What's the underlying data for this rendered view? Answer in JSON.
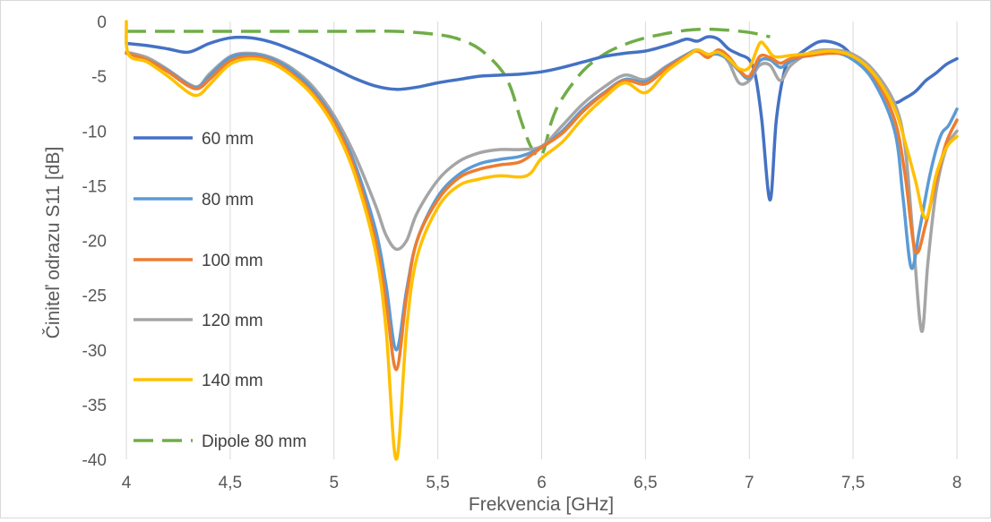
{
  "chart_data": {
    "type": "line",
    "title": "",
    "xlabel": "Frekvencia [GHz]",
    "ylabel": "Činiteľ odrazu S11 [dB]",
    "xlim": [
      4,
      8
    ],
    "ylim": [
      -40,
      0
    ],
    "x_ticks": [
      "4",
      "4,5",
      "5",
      "5,5",
      "6",
      "6,5",
      "7",
      "7,5",
      "8"
    ],
    "y_ticks": [
      "0",
      "-5",
      "-10",
      "-15",
      "-20",
      "-25",
      "-30",
      "-35",
      "-40"
    ],
    "x_tick_values": [
      4,
      4.5,
      5,
      5.5,
      6,
      6.5,
      7,
      7.5,
      8
    ],
    "y_tick_values": [
      0,
      -5,
      -10,
      -15,
      -20,
      -25,
      -30,
      -35,
      -40
    ],
    "grid": "vertical",
    "legend_position": "left",
    "series": [
      {
        "name": "60 mm",
        "color": "#4472c4",
        "dash": false,
        "points": [
          [
            4,
            -2.0
          ],
          [
            4.1,
            -2.2
          ],
          [
            4.2,
            -2.5
          ],
          [
            4.3,
            -2.8
          ],
          [
            4.4,
            -2.0
          ],
          [
            4.5,
            -1.5
          ],
          [
            4.6,
            -1.5
          ],
          [
            4.7,
            -1.9
          ],
          [
            4.8,
            -2.6
          ],
          [
            4.9,
            -3.4
          ],
          [
            5.0,
            -4.3
          ],
          [
            5.1,
            -5.2
          ],
          [
            5.2,
            -5.9
          ],
          [
            5.3,
            -6.2
          ],
          [
            5.4,
            -6.0
          ],
          [
            5.5,
            -5.6
          ],
          [
            5.6,
            -5.3
          ],
          [
            5.7,
            -5.0
          ],
          [
            5.8,
            -4.9
          ],
          [
            5.9,
            -4.8
          ],
          [
            6.0,
            -4.6
          ],
          [
            6.1,
            -4.2
          ],
          [
            6.2,
            -3.7
          ],
          [
            6.3,
            -3.2
          ],
          [
            6.4,
            -2.9
          ],
          [
            6.5,
            -2.7
          ],
          [
            6.6,
            -2.2
          ],
          [
            6.65,
            -1.9
          ],
          [
            6.7,
            -1.6
          ],
          [
            6.75,
            -1.8
          ],
          [
            6.8,
            -1.4
          ],
          [
            6.85,
            -1.6
          ],
          [
            6.9,
            -2.5
          ],
          [
            6.95,
            -3.0
          ],
          [
            7.0,
            -3.5
          ],
          [
            7.03,
            -5.0
          ],
          [
            7.06,
            -9.0
          ],
          [
            7.1,
            -16.3
          ],
          [
            7.13,
            -9.0
          ],
          [
            7.17,
            -4.5
          ],
          [
            7.2,
            -3.6
          ],
          [
            7.3,
            -2.2
          ],
          [
            7.35,
            -1.8
          ],
          [
            7.4,
            -1.9
          ],
          [
            7.45,
            -2.3
          ],
          [
            7.5,
            -3.2
          ],
          [
            7.55,
            -4.2
          ],
          [
            7.6,
            -5.2
          ],
          [
            7.65,
            -6.5
          ],
          [
            7.7,
            -7.4
          ],
          [
            7.75,
            -7.0
          ],
          [
            7.8,
            -6.4
          ],
          [
            7.85,
            -5.4
          ],
          [
            7.9,
            -4.7
          ],
          [
            7.95,
            -3.9
          ],
          [
            8.0,
            -3.4
          ]
        ]
      },
      {
        "name": "80 mm",
        "color": "#5b9bd5",
        "dash": false,
        "points": [
          [
            4,
            -2.9
          ],
          [
            4.1,
            -3.5
          ],
          [
            4.2,
            -4.5
          ],
          [
            4.3,
            -5.8
          ],
          [
            4.35,
            -6.0
          ],
          [
            4.4,
            -5.0
          ],
          [
            4.5,
            -3.3
          ],
          [
            4.6,
            -3.0
          ],
          [
            4.7,
            -3.4
          ],
          [
            4.8,
            -4.5
          ],
          [
            4.9,
            -6.3
          ],
          [
            5.0,
            -9.0
          ],
          [
            5.1,
            -13.0
          ],
          [
            5.2,
            -19.0
          ],
          [
            5.25,
            -24.0
          ],
          [
            5.3,
            -30.0
          ],
          [
            5.35,
            -24.5
          ],
          [
            5.4,
            -20.0
          ],
          [
            5.5,
            -16.0
          ],
          [
            5.6,
            -14.0
          ],
          [
            5.7,
            -13.0
          ],
          [
            5.8,
            -12.6
          ],
          [
            5.9,
            -12.3
          ],
          [
            6.0,
            -11.5
          ],
          [
            6.1,
            -10.0
          ],
          [
            6.2,
            -8.0
          ],
          [
            6.3,
            -6.5
          ],
          [
            6.4,
            -5.3
          ],
          [
            6.5,
            -5.5
          ],
          [
            6.6,
            -4.2
          ],
          [
            6.7,
            -3.0
          ],
          [
            6.75,
            -2.6
          ],
          [
            6.8,
            -3.0
          ],
          [
            6.85,
            -3.0
          ],
          [
            6.9,
            -3.5
          ],
          [
            6.95,
            -4.5
          ],
          [
            7.0,
            -5.2
          ],
          [
            7.05,
            -3.6
          ],
          [
            7.1,
            -3.5
          ],
          [
            7.15,
            -4.2
          ],
          [
            7.2,
            -3.6
          ],
          [
            7.3,
            -3.0
          ],
          [
            7.4,
            -2.8
          ],
          [
            7.5,
            -3.5
          ],
          [
            7.6,
            -5.5
          ],
          [
            7.7,
            -10.0
          ],
          [
            7.74,
            -16.0
          ],
          [
            7.78,
            -22.5
          ],
          [
            7.82,
            -19.0
          ],
          [
            7.87,
            -14.0
          ],
          [
            7.92,
            -10.5
          ],
          [
            7.96,
            -9.5
          ],
          [
            8.0,
            -8.0
          ]
        ]
      },
      {
        "name": "100 mm",
        "color": "#ed7d31",
        "dash": false,
        "points": [
          [
            4,
            -2.9
          ],
          [
            4.1,
            -3.5
          ],
          [
            4.2,
            -4.6
          ],
          [
            4.3,
            -5.9
          ],
          [
            4.35,
            -6.1
          ],
          [
            4.4,
            -5.3
          ],
          [
            4.5,
            -3.6
          ],
          [
            4.6,
            -3.2
          ],
          [
            4.7,
            -3.6
          ],
          [
            4.8,
            -4.8
          ],
          [
            4.9,
            -6.6
          ],
          [
            5.0,
            -9.2
          ],
          [
            5.1,
            -13.5
          ],
          [
            5.2,
            -20.0
          ],
          [
            5.25,
            -25.5
          ],
          [
            5.3,
            -31.8
          ],
          [
            5.35,
            -25.0
          ],
          [
            5.4,
            -20.0
          ],
          [
            5.5,
            -16.3
          ],
          [
            5.6,
            -14.3
          ],
          [
            5.7,
            -13.5
          ],
          [
            5.8,
            -13.1
          ],
          [
            5.9,
            -12.8
          ],
          [
            6.0,
            -11.5
          ],
          [
            6.1,
            -10.2
          ],
          [
            6.2,
            -8.2
          ],
          [
            6.3,
            -6.6
          ],
          [
            6.4,
            -5.4
          ],
          [
            6.5,
            -5.7
          ],
          [
            6.6,
            -4.3
          ],
          [
            6.7,
            -3.1
          ],
          [
            6.75,
            -2.7
          ],
          [
            6.8,
            -3.3
          ],
          [
            6.85,
            -2.6
          ],
          [
            6.9,
            -3.2
          ],
          [
            6.95,
            -4.4
          ],
          [
            7.0,
            -5.0
          ],
          [
            7.05,
            -3.2
          ],
          [
            7.1,
            -3.3
          ],
          [
            7.15,
            -3.8
          ],
          [
            7.2,
            -3.4
          ],
          [
            7.3,
            -3.1
          ],
          [
            7.4,
            -2.9
          ],
          [
            7.5,
            -3.2
          ],
          [
            7.6,
            -5.0
          ],
          [
            7.7,
            -9.0
          ],
          [
            7.75,
            -14.0
          ],
          [
            7.8,
            -21.0
          ],
          [
            7.85,
            -18.5
          ],
          [
            7.9,
            -14.5
          ],
          [
            7.95,
            -11.0
          ],
          [
            8.0,
            -9.0
          ]
        ]
      },
      {
        "name": "120 mm",
        "color": "#a5a5a5",
        "dash": false,
        "points": [
          [
            4,
            -2.8
          ],
          [
            4.1,
            -3.3
          ],
          [
            4.2,
            -4.4
          ],
          [
            4.3,
            -5.7
          ],
          [
            4.35,
            -5.9
          ],
          [
            4.4,
            -4.8
          ],
          [
            4.5,
            -3.2
          ],
          [
            4.6,
            -2.9
          ],
          [
            4.7,
            -3.3
          ],
          [
            4.8,
            -4.3
          ],
          [
            4.9,
            -6.0
          ],
          [
            5.0,
            -8.6
          ],
          [
            5.1,
            -12.2
          ],
          [
            5.2,
            -16.8
          ],
          [
            5.25,
            -19.5
          ],
          [
            5.3,
            -20.8
          ],
          [
            5.35,
            -20.0
          ],
          [
            5.4,
            -17.5
          ],
          [
            5.5,
            -14.5
          ],
          [
            5.6,
            -12.8
          ],
          [
            5.7,
            -12.0
          ],
          [
            5.8,
            -11.7
          ],
          [
            5.9,
            -11.7
          ],
          [
            6.0,
            -11.4
          ],
          [
            6.1,
            -9.5
          ],
          [
            6.2,
            -7.5
          ],
          [
            6.3,
            -6.0
          ],
          [
            6.4,
            -4.9
          ],
          [
            6.5,
            -5.3
          ],
          [
            6.6,
            -4.1
          ],
          [
            6.7,
            -3.0
          ],
          [
            6.75,
            -2.7
          ],
          [
            6.8,
            -3.1
          ],
          [
            6.85,
            -2.8
          ],
          [
            6.9,
            -3.7
          ],
          [
            6.95,
            -5.6
          ],
          [
            7.0,
            -5.4
          ],
          [
            7.05,
            -4.0
          ],
          [
            7.1,
            -4.0
          ],
          [
            7.15,
            -5.4
          ],
          [
            7.2,
            -4.0
          ],
          [
            7.3,
            -2.8
          ],
          [
            7.4,
            -2.6
          ],
          [
            7.5,
            -3.0
          ],
          [
            7.6,
            -4.5
          ],
          [
            7.7,
            -7.5
          ],
          [
            7.75,
            -11.5
          ],
          [
            7.79,
            -20.0
          ],
          [
            7.83,
            -28.3
          ],
          [
            7.86,
            -22.0
          ],
          [
            7.9,
            -15.5
          ],
          [
            7.95,
            -11.5
          ],
          [
            8.0,
            -10.0
          ]
        ]
      },
      {
        "name": "140 mm",
        "color": "#ffc000",
        "dash": false,
        "points": [
          [
            4,
            0
          ],
          [
            4.01,
            -3.0
          ],
          [
            4.1,
            -3.7
          ],
          [
            4.2,
            -5.0
          ],
          [
            4.3,
            -6.5
          ],
          [
            4.35,
            -6.7
          ],
          [
            4.4,
            -5.8
          ],
          [
            4.5,
            -3.9
          ],
          [
            4.6,
            -3.4
          ],
          [
            4.7,
            -3.8
          ],
          [
            4.8,
            -5.0
          ],
          [
            4.9,
            -6.8
          ],
          [
            5.0,
            -9.6
          ],
          [
            5.1,
            -14.0
          ],
          [
            5.2,
            -21.0
          ],
          [
            5.25,
            -28.0
          ],
          [
            5.3,
            -40.0
          ],
          [
            5.35,
            -28.0
          ],
          [
            5.4,
            -21.5
          ],
          [
            5.5,
            -17.0
          ],
          [
            5.6,
            -15.0
          ],
          [
            5.7,
            -14.4
          ],
          [
            5.8,
            -14.1
          ],
          [
            5.9,
            -14.2
          ],
          [
            5.95,
            -13.8
          ],
          [
            6.0,
            -12.5
          ],
          [
            6.1,
            -11.0
          ],
          [
            6.2,
            -8.8
          ],
          [
            6.3,
            -7.0
          ],
          [
            6.4,
            -5.6
          ],
          [
            6.5,
            -6.5
          ],
          [
            6.6,
            -4.6
          ],
          [
            6.7,
            -3.2
          ],
          [
            6.75,
            -2.6
          ],
          [
            6.8,
            -3.0
          ],
          [
            6.85,
            -2.8
          ],
          [
            6.9,
            -3.4
          ],
          [
            6.95,
            -4.3
          ],
          [
            7.0,
            -4.2
          ],
          [
            7.05,
            -2.0
          ],
          [
            7.08,
            -2.3
          ],
          [
            7.12,
            -3.2
          ],
          [
            7.2,
            -3.1
          ],
          [
            7.3,
            -2.9
          ],
          [
            7.4,
            -2.7
          ],
          [
            7.5,
            -3.2
          ],
          [
            7.6,
            -4.8
          ],
          [
            7.7,
            -8.0
          ],
          [
            7.75,
            -11.0
          ],
          [
            7.8,
            -14.5
          ],
          [
            7.85,
            -18.0
          ],
          [
            7.9,
            -14.0
          ],
          [
            7.95,
            -11.5
          ],
          [
            8.0,
            -10.5
          ]
        ]
      },
      {
        "name": "Dipole 80 mm",
        "color": "#70ad47",
        "dash": true,
        "points": [
          [
            4,
            -0.9
          ],
          [
            4.5,
            -0.9
          ],
          [
            5.0,
            -0.9
          ],
          [
            5.3,
            -0.9
          ],
          [
            5.5,
            -1.2
          ],
          [
            5.6,
            -1.6
          ],
          [
            5.7,
            -2.5
          ],
          [
            5.8,
            -4.3
          ],
          [
            5.85,
            -6.0
          ],
          [
            5.9,
            -9.0
          ],
          [
            5.95,
            -11.5
          ],
          [
            6.0,
            -12.2
          ],
          [
            6.05,
            -9.0
          ],
          [
            6.1,
            -7.0
          ],
          [
            6.2,
            -4.5
          ],
          [
            6.3,
            -3.0
          ],
          [
            6.4,
            -2.1
          ],
          [
            6.5,
            -1.5
          ],
          [
            6.6,
            -1.1
          ],
          [
            6.7,
            -0.8
          ],
          [
            6.8,
            -0.7
          ],
          [
            6.9,
            -0.8
          ],
          [
            7.0,
            -1.0
          ],
          [
            7.1,
            -1.4
          ]
        ]
      }
    ]
  }
}
